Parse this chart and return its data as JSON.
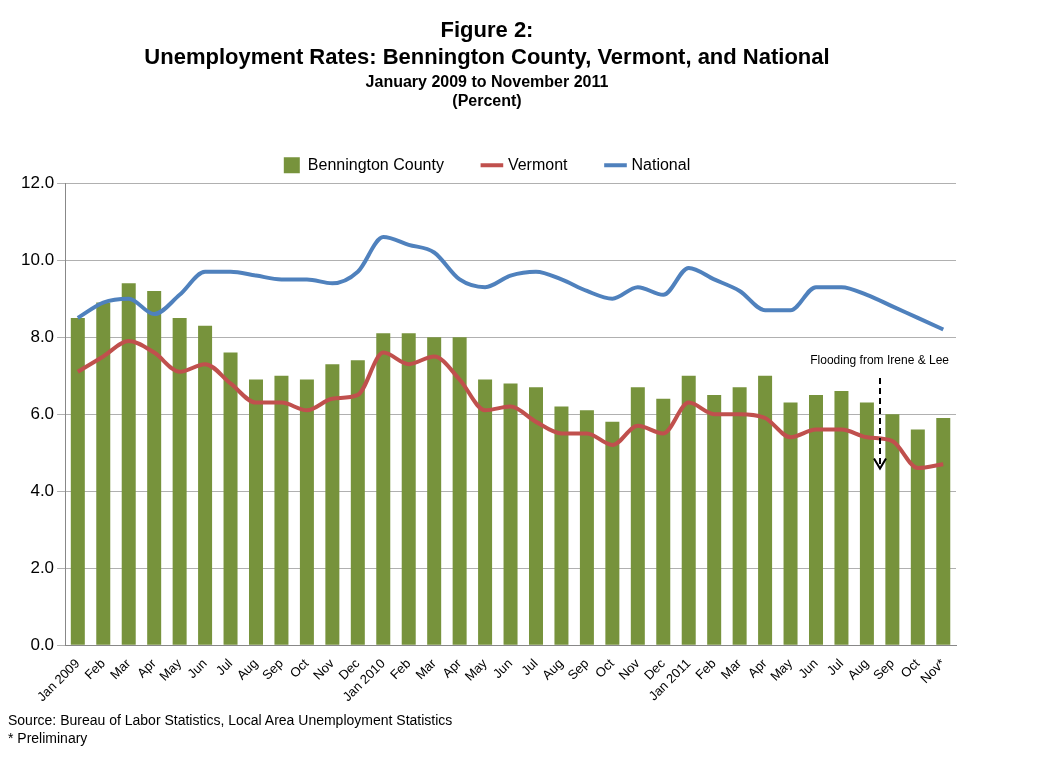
{
  "chart_data": {
    "type": "bar",
    "title": "Figure 2:\nUnemployment Rates: Bennington County, Vermont, and National",
    "subtitle": "January 2009 to November 2011\n(Percent)",
    "categories": [
      "Jan 2009",
      "Feb",
      "Mar",
      "Apr",
      "May",
      "Jun",
      "Jul",
      "Aug",
      "Sep",
      "Oct",
      "Nov",
      "Dec",
      "Jan 2010",
      "Feb",
      "Mar",
      "Apr",
      "May",
      "Jun",
      "Jul",
      "Aug",
      "Sep",
      "Oct",
      "Nov",
      "Dec",
      "Jan 2011",
      "Feb",
      "Mar",
      "Apr",
      "May",
      "Jun",
      "Jul",
      "Aug",
      "Sep",
      "Oct",
      "Nov*"
    ],
    "series": [
      {
        "name": "Bennington County",
        "color": "#77933c",
        "values": [
          8.5,
          8.9,
          9.4,
          9.2,
          8.5,
          8.3,
          7.6,
          6.9,
          7.0,
          6.9,
          7.3,
          7.4,
          8.1,
          8.1,
          8.0,
          8.0,
          6.9,
          6.8,
          6.7,
          6.2,
          6.1,
          5.8,
          6.7,
          6.4,
          7.0,
          6.5,
          6.7,
          7.0,
          6.3,
          6.5,
          6.6,
          6.3,
          6.0,
          5.6,
          5.9
        ]
      },
      {
        "name": "Vermont",
        "type": "line",
        "color": "#c0504d",
        "values": [
          7.1,
          7.5,
          7.9,
          7.6,
          7.1,
          7.3,
          6.8,
          6.3,
          6.3,
          6.1,
          6.4,
          6.5,
          7.6,
          7.3,
          7.5,
          6.9,
          6.1,
          6.2,
          5.8,
          5.5,
          5.5,
          5.2,
          5.7,
          5.5,
          6.3,
          6.0,
          6.0,
          5.9,
          5.4,
          5.6,
          5.6,
          5.4,
          5.3,
          4.6,
          4.7
        ]
      },
      {
        "name": "National",
        "type": "line",
        "color": "#4f81bd",
        "values": [
          8.5,
          8.9,
          9.0,
          8.6,
          9.1,
          9.7,
          9.7,
          9.6,
          9.5,
          9.5,
          9.4,
          9.7,
          10.6,
          10.4,
          10.2,
          9.5,
          9.3,
          9.6,
          9.7,
          9.5,
          9.2,
          9.0,
          9.3,
          9.1,
          9.8,
          9.5,
          9.2,
          8.7,
          8.7,
          9.3,
          9.3,
          9.1,
          8.8,
          8.5,
          8.2
        ]
      }
    ],
    "ylim": [
      0,
      12
    ],
    "yticks": [
      {
        "value": 0,
        "label": "0.0"
      },
      {
        "value": 2,
        "label": "2.0"
      },
      {
        "value": 4,
        "label": "4.0"
      },
      {
        "value": 6,
        "label": "6.0"
      },
      {
        "value": 8,
        "label": "8.0"
      },
      {
        "value": 10,
        "label": "10.0"
      },
      {
        "value": 12,
        "label": "12.0"
      }
    ],
    "grid": "y",
    "legend": "top",
    "marker": "none",
    "line_style": "solid",
    "annotations": [
      "Flooding from Irene & Lee",
      "Source: Bureau of Labor Statistics, Local Area Unemployment Statistics",
      "* Preliminary"
    ]
  }
}
